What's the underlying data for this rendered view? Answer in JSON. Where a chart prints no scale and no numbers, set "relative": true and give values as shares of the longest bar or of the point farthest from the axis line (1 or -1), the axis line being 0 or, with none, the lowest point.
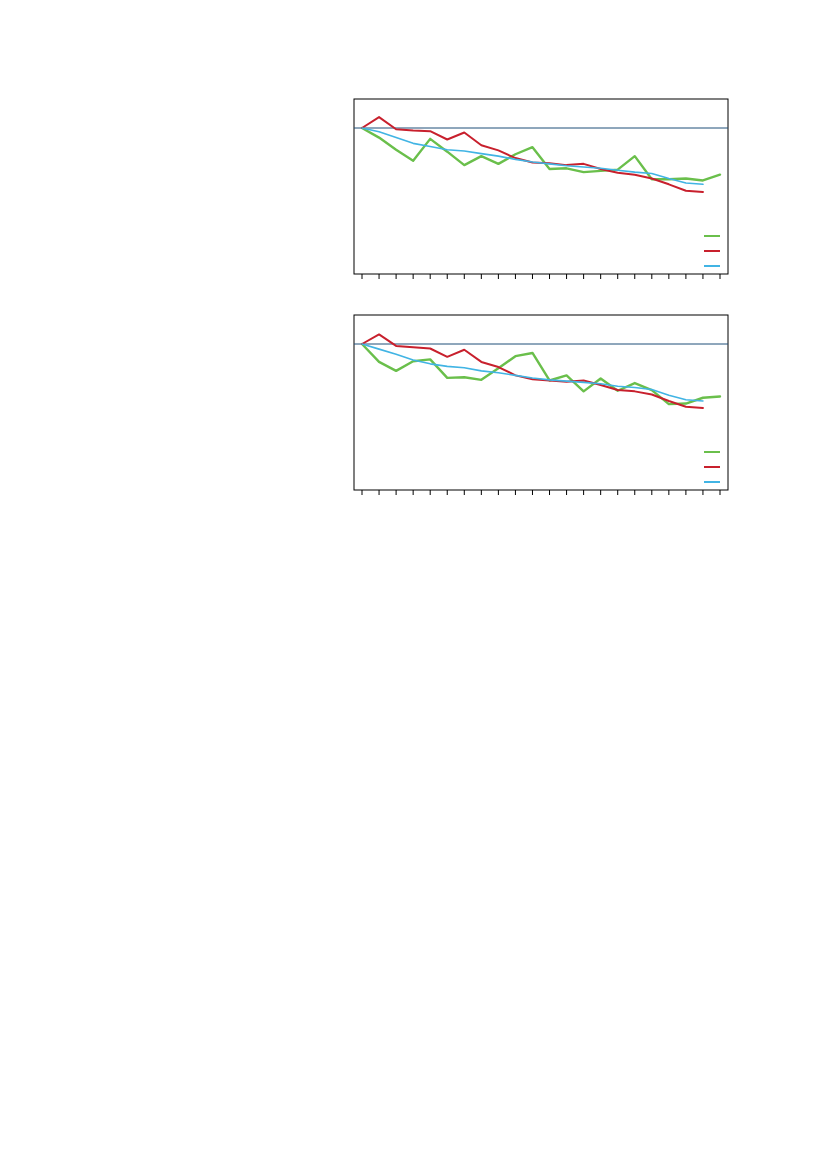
{
  "chart_data": [
    {
      "type": "line",
      "relative": true,
      "ref_lines": [
        {
          "axis": "y",
          "value": 0,
          "color": "#1f4e79"
        }
      ],
      "categories": [
        null,
        null,
        null,
        null,
        null,
        null,
        null,
        null,
        null,
        null,
        null,
        null,
        null,
        null,
        null,
        null,
        null,
        null,
        null,
        null,
        null,
        null
      ],
      "series": [
        {
          "color": "#6abf4b",
          "values": [
            0,
            -0.15,
            -0.34,
            -0.51,
            -0.17,
            -0.37,
            -0.58,
            -0.44,
            -0.56,
            -0.41,
            -0.3,
            -0.64,
            -0.63,
            -0.69,
            -0.67,
            -0.65,
            -0.44,
            -0.8,
            -0.8,
            -0.79,
            -0.82,
            -0.73
          ]
        },
        {
          "color": "#c8202d",
          "values": [
            0,
            0.17,
            -0.02,
            -0.04,
            -0.05,
            -0.18,
            -0.07,
            -0.27,
            -0.35,
            -0.47,
            -0.54,
            -0.55,
            -0.58,
            -0.56,
            -0.64,
            -0.7,
            -0.73,
            -0.79,
            -0.88,
            -0.98,
            -1,
            null
          ]
        },
        {
          "color": "#41b4e4",
          "values": [
            0,
            -0.06,
            -0.15,
            -0.24,
            -0.29,
            -0.34,
            -0.36,
            -0.4,
            -0.44,
            -0.49,
            -0.53,
            -0.56,
            -0.59,
            -0.61,
            -0.63,
            -0.66,
            -0.69,
            -0.71,
            -0.79,
            -0.86,
            -0.88,
            null
          ]
        }
      ]
    },
    {
      "type": "line",
      "relative": true,
      "ref_lines": [
        {
          "axis": "y",
          "value": 0,
          "color": "#1f4e79"
        }
      ],
      "categories": [
        null,
        null,
        null,
        null,
        null,
        null,
        null,
        null,
        null,
        null,
        null,
        null,
        null,
        null,
        null,
        null,
        null,
        null,
        null,
        null,
        null,
        null
      ],
      "series": [
        {
          "color": "#6abf4b",
          "values": [
            0,
            -0.28,
            -0.42,
            -0.27,
            -0.24,
            -0.53,
            -0.52,
            -0.56,
            -0.38,
            -0.19,
            -0.14,
            -0.57,
            -0.49,
            -0.74,
            -0.54,
            -0.73,
            -0.61,
            -0.72,
            -0.94,
            -0.93,
            -0.84,
            -0.82
          ]
        },
        {
          "color": "#c8202d",
          "values": [
            0,
            0.15,
            -0.03,
            -0.05,
            -0.07,
            -0.2,
            -0.09,
            -0.28,
            -0.36,
            -0.49,
            -0.55,
            -0.57,
            -0.59,
            -0.57,
            -0.64,
            -0.72,
            -0.74,
            -0.79,
            -0.89,
            -0.98,
            -1,
            null
          ]
        },
        {
          "color": "#41b4e4",
          "values": [
            0,
            -0.08,
            -0.16,
            -0.25,
            -0.31,
            -0.35,
            -0.37,
            -0.42,
            -0.45,
            -0.49,
            -0.53,
            -0.56,
            -0.58,
            -0.6,
            -0.62,
            -0.66,
            -0.68,
            -0.71,
            -0.8,
            -0.87,
            -0.89,
            null
          ]
        }
      ]
    }
  ]
}
